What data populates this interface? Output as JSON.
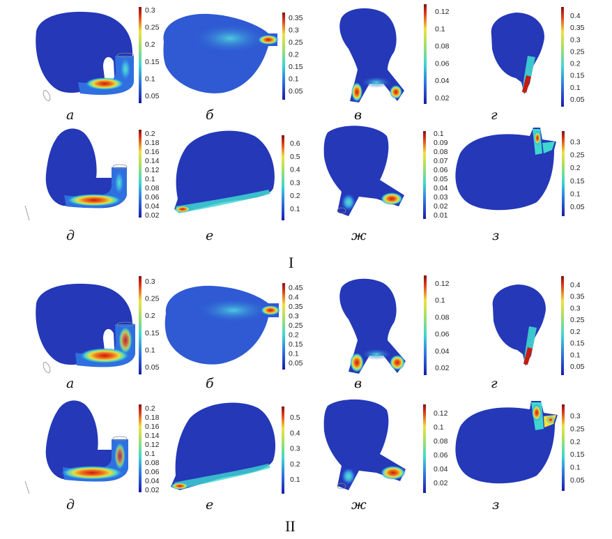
{
  "groups": [
    {
      "label": "I",
      "panels": [
        {
          "label": "а",
          "ticks": [
            "0.3",
            "0.25",
            "0.2",
            "0.15",
            "0.1",
            "0.05"
          ]
        },
        {
          "label": "б",
          "ticks": [
            "0.35",
            "0.3",
            "0.25",
            "0.2",
            "0.15",
            "0.1",
            "0.05"
          ]
        },
        {
          "label": "в",
          "ticks": [
            "0.12",
            "0.1",
            "0.08",
            "0.06",
            "0.04",
            "0.02"
          ]
        },
        {
          "label": "г",
          "ticks": [
            "0.4",
            "0.35",
            "0.3",
            "0.25",
            "0.2",
            "0.15",
            "0.1",
            "0.05"
          ]
        },
        {
          "label": "д",
          "ticks": [
            "0.2",
            "0.18",
            "0.16",
            "0.14",
            "0.12",
            "0.1",
            "0.08",
            "0.06",
            "0.04",
            "0.02"
          ]
        },
        {
          "label": "е",
          "ticks": [
            "0.6",
            "0.5",
            "0.4",
            "0.3",
            "0.2",
            "0.1"
          ]
        },
        {
          "label": "ж",
          "ticks": [
            "0.1",
            "0.09",
            "0.08",
            "0.07",
            "0.06",
            "0.05",
            "0.04",
            "0.03",
            "0.02",
            "0.01"
          ]
        },
        {
          "label": "з",
          "ticks": [
            "0.3",
            "0.25",
            "0.2",
            "0.15",
            "0.1",
            "0.05"
          ]
        }
      ]
    },
    {
      "label": "II",
      "panels": [
        {
          "label": "а",
          "ticks": [
            "0.3",
            "0.25",
            "0.2",
            "0.15",
            "0.1",
            "0.05"
          ]
        },
        {
          "label": "б",
          "ticks": [
            "0.45",
            "0.4",
            "0.35",
            "0.3",
            "0.25",
            "0.2",
            "0.15",
            "0.1",
            "0.05"
          ]
        },
        {
          "label": "в",
          "ticks": [
            "0.12",
            "0.1",
            "0.08",
            "0.06",
            "0.04",
            "0.02"
          ]
        },
        {
          "label": "г",
          "ticks": [
            "0.4",
            "0.35",
            "0.3",
            "0.25",
            "0.2",
            "0.15",
            "0.1",
            "0.05"
          ]
        },
        {
          "label": "д",
          "ticks": [
            "0.2",
            "0.18",
            "0.16",
            "0.14",
            "0.12",
            "0.1",
            "0.08",
            "0.06",
            "0.04",
            "0.02"
          ]
        },
        {
          "label": "е",
          "ticks": [
            "0.5",
            "0.4",
            "0.3",
            "0.2",
            "0.1"
          ]
        },
        {
          "label": "ж",
          "ticks": [
            "0.12",
            "0.1",
            "0.08",
            "0.06",
            "0.04",
            "0.02"
          ]
        },
        {
          "label": "з",
          "ticks": [
            "0.3",
            "0.25",
            "0.2",
            "0.15",
            "0.1",
            "0.05"
          ]
        }
      ]
    }
  ],
  "colors": {
    "jet_low": "#1a1aa8",
    "jet_mid_low": "#2f6fe0",
    "jet_mid": "#3fd6d0",
    "jet_mid_high": "#f0e040",
    "jet_high": "#e0401a",
    "jet_max": "#8a0d0d"
  }
}
